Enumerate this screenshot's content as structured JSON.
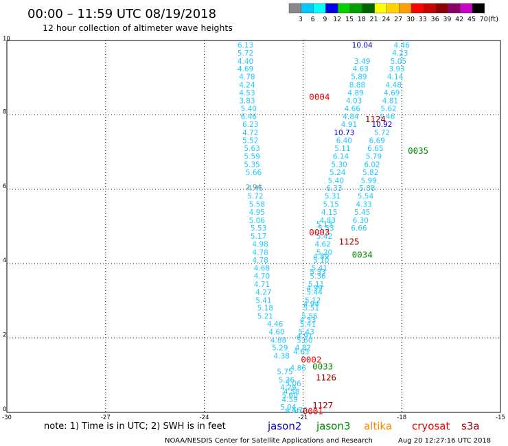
{
  "header": {
    "title": "00:00 – 11:59 UTC 08/19/2018",
    "subtitle": "12 hour collection of altimeter wave heights"
  },
  "legend": {
    "swatches": [
      {
        "color": "#888888",
        "label": "3"
      },
      {
        "color": "#00c8ff",
        "label": "6"
      },
      {
        "color": "#00ffff",
        "label": "9"
      },
      {
        "color": "#0000e6",
        "label": "12"
      },
      {
        "color": "#00d200",
        "label": "15"
      },
      {
        "color": "#00a000",
        "label": "18"
      },
      {
        "color": "#006400",
        "label": "21"
      },
      {
        "color": "#ffff00",
        "label": "24"
      },
      {
        "color": "#ffd200",
        "label": "27"
      },
      {
        "color": "#ffa000",
        "label": "30"
      },
      {
        "color": "#ff0000",
        "label": "33"
      },
      {
        "color": "#c80000",
        "label": "36"
      },
      {
        "color": "#8c0000",
        "label": "39"
      },
      {
        "color": "#8c0064",
        "label": "42"
      },
      {
        "color": "#c800c8",
        "label": "45"
      },
      {
        "color": "#000000",
        "label": "70"
      }
    ],
    "unit": "(ft)"
  },
  "footer": {
    "note": "note:  1) Time is in UTC;  2) SWH is in feet",
    "credit": "NOAA/NESDIS Center for Satellite Applications and Research",
    "timestamp": "Aug 20 12:27:16 UTC 2018",
    "missions": [
      {
        "name": "jason2",
        "color": "#0000cc"
      },
      {
        "name": "jason3",
        "color": "#008800"
      },
      {
        "name": "altika",
        "color": "#ff8800"
      },
      {
        "name": "cryosat",
        "color": "#ee0000"
      },
      {
        "name": "s3a",
        "color": "#990000"
      }
    ]
  },
  "chart_data": {
    "type": "scatter",
    "xlim": [
      -30,
      -15
    ],
    "ylim": [
      0,
      10
    ],
    "x_ticks": [
      "-30",
      "-27",
      "-24",
      "-21",
      "-18",
      "-15"
    ],
    "y_ticks": [
      "0",
      "2",
      "4",
      "6",
      "8",
      "10"
    ],
    "grid": true,
    "track_labels": [
      {
        "x": -20.5,
        "y": 8.5,
        "text": "0004",
        "color": "#ee0000"
      },
      {
        "x": -20.5,
        "y": 4.85,
        "text": "0003",
        "color": "#ee0000"
      },
      {
        "x": -20.75,
        "y": 1.43,
        "text": "0002",
        "color": "#ee0000"
      },
      {
        "x": -20.7,
        "y": 0.05,
        "text": "0001",
        "color": "#ee0000"
      },
      {
        "x": -18.8,
        "y": 7.9,
        "text": "1124",
        "color": "#990000"
      },
      {
        "x": -19.6,
        "y": 4.6,
        "text": "1125",
        "color": "#990000"
      },
      {
        "x": -20.3,
        "y": 0.95,
        "text": "1126",
        "color": "#990000"
      },
      {
        "x": -20.4,
        "y": 0.2,
        "text": "1127",
        "color": "#990000"
      },
      {
        "x": -17.5,
        "y": 7.05,
        "text": "0035",
        "color": "#008800"
      },
      {
        "x": -19.2,
        "y": 4.25,
        "text": "0034",
        "color": "#008800"
      },
      {
        "x": -20.4,
        "y": 1.25,
        "text": "0033",
        "color": "#008800"
      }
    ],
    "series": [
      {
        "color": "#1ec8ff",
        "points": [
          {
            "x": -22.75,
            "y": 9.88,
            "v": "6.13"
          },
          {
            "x": -22.75,
            "y": 9.67,
            "v": "5.72"
          },
          {
            "x": -22.75,
            "y": 9.45,
            "v": "4.40"
          },
          {
            "x": -22.75,
            "y": 9.24,
            "v": "4.69"
          },
          {
            "x": -22.7,
            "y": 9.03,
            "v": "4.78"
          },
          {
            "x": -22.7,
            "y": 8.81,
            "v": "4.24"
          },
          {
            "x": -22.7,
            "y": 8.6,
            "v": "4.53"
          },
          {
            "x": -22.7,
            "y": 8.39,
            "v": "3.83"
          },
          {
            "x": -22.65,
            "y": 8.17,
            "v": "5.40"
          },
          {
            "x": -22.65,
            "y": 7.96,
            "v": "6.46"
          },
          {
            "x": -22.6,
            "y": 7.75,
            "v": "6.23"
          },
          {
            "x": -22.6,
            "y": 7.53,
            "v": "4.72"
          },
          {
            "x": -22.6,
            "y": 7.32,
            "v": "5.52"
          },
          {
            "x": -22.55,
            "y": 7.1,
            "v": "5.63"
          },
          {
            "x": -22.55,
            "y": 6.89,
            "v": "5.59"
          },
          {
            "x": -22.55,
            "y": 6.67,
            "v": "5.35"
          },
          {
            "x": -22.5,
            "y": 6.46,
            "v": "5.66"
          },
          {
            "x": -22.45,
            "y": 6.03,
            "v": "4.45"
          },
          {
            "x": -22.45,
            "y": 5.82,
            "v": "5.72"
          },
          {
            "x": -22.4,
            "y": 5.6,
            "v": "5.58"
          },
          {
            "x": -22.4,
            "y": 5.39,
            "v": "4.95"
          },
          {
            "x": -22.4,
            "y": 5.17,
            "v": "5.06"
          },
          {
            "x": -22.35,
            "y": 4.96,
            "v": "5.53"
          },
          {
            "x": -22.35,
            "y": 4.74,
            "v": "5.17"
          },
          {
            "x": -22.3,
            "y": 4.53,
            "v": "4.98"
          },
          {
            "x": -22.3,
            "y": 4.31,
            "v": "4.78"
          },
          {
            "x": -22.3,
            "y": 4.1,
            "v": "4.78"
          },
          {
            "x": -22.25,
            "y": 3.88,
            "v": "4.68"
          },
          {
            "x": -22.25,
            "y": 3.67,
            "v": "4.70"
          },
          {
            "x": -22.25,
            "y": 3.45,
            "v": "4.71"
          },
          {
            "x": -22.2,
            "y": 3.24,
            "v": "4.27"
          },
          {
            "x": -22.2,
            "y": 3.02,
            "v": "5.41"
          },
          {
            "x": -22.15,
            "y": 2.81,
            "v": "5.18"
          },
          {
            "x": -22.15,
            "y": 2.59,
            "v": "5.21"
          },
          {
            "x": -21.85,
            "y": 2.38,
            "v": "4.46"
          },
          {
            "x": -21.8,
            "y": 2.17,
            "v": "4.60"
          },
          {
            "x": -21.75,
            "y": 1.95,
            "v": "4.88"
          },
          {
            "x": -21.7,
            "y": 1.74,
            "v": "5.29"
          },
          {
            "x": -21.65,
            "y": 1.52,
            "v": "4.38"
          },
          {
            "x": -21.55,
            "y": 1.1,
            "v": "5.75"
          },
          {
            "x": -21.5,
            "y": 0.88,
            "v": "5.36"
          },
          {
            "x": -21.45,
            "y": 0.67,
            "v": "4.29"
          },
          {
            "x": -21.4,
            "y": 0.46,
            "v": "5.60"
          }
        ]
      },
      {
        "color": "#1ec8ff",
        "points": [
          {
            "x": -18.0,
            "y": 9.88,
            "v": "4.46"
          },
          {
            "x": -18.05,
            "y": 9.67,
            "v": "4.23"
          },
          {
            "x": -18.1,
            "y": 9.45,
            "v": "5.05"
          },
          {
            "x": -18.15,
            "y": 9.24,
            "v": "3.93"
          },
          {
            "x": -18.2,
            "y": 9.03,
            "v": "4.14"
          },
          {
            "x": -18.25,
            "y": 8.81,
            "v": "4.48"
          },
          {
            "x": -18.3,
            "y": 8.6,
            "v": "4.69"
          },
          {
            "x": -18.35,
            "y": 8.39,
            "v": "4.81"
          },
          {
            "x": -18.4,
            "y": 8.17,
            "v": "5.62"
          },
          {
            "x": -18.45,
            "y": 7.96,
            "v": "4.46"
          },
          {
            "x": -18.6,
            "y": 7.53,
            "v": "5.72"
          },
          {
            "x": -18.75,
            "y": 7.32,
            "v": "6.69"
          },
          {
            "x": -18.8,
            "y": 7.1,
            "v": "6.65"
          },
          {
            "x": -18.85,
            "y": 6.89,
            "v": "5.79"
          },
          {
            "x": -18.9,
            "y": 6.67,
            "v": "6.02"
          },
          {
            "x": -18.95,
            "y": 6.46,
            "v": "5.82"
          },
          {
            "x": -19.0,
            "y": 6.24,
            "v": "5.99"
          },
          {
            "x": -19.05,
            "y": 6.03,
            "v": "5.88"
          },
          {
            "x": -19.1,
            "y": 5.82,
            "v": "5.54"
          },
          {
            "x": -19.15,
            "y": 5.6,
            "v": "4.33"
          },
          {
            "x": -19.2,
            "y": 5.39,
            "v": "5.45"
          },
          {
            "x": -19.25,
            "y": 5.17,
            "v": "6.30"
          },
          {
            "x": -19.3,
            "y": 4.96,
            "v": "6.66"
          }
        ]
      },
      {
        "color": "#1ec8ff",
        "points": [
          {
            "x": -19.2,
            "y": 9.45,
            "v": "3.49"
          },
          {
            "x": -19.25,
            "y": 9.24,
            "v": "4.63"
          },
          {
            "x": -19.3,
            "y": 9.03,
            "v": "5.89"
          },
          {
            "x": -19.35,
            "y": 8.81,
            "v": "8.88"
          },
          {
            "x": -19.4,
            "y": 8.6,
            "v": "4.89"
          },
          {
            "x": -19.45,
            "y": 8.39,
            "v": "4.03"
          },
          {
            "x": -19.5,
            "y": 8.17,
            "v": "4.66"
          },
          {
            "x": -19.55,
            "y": 7.96,
            "v": "4.84"
          },
          {
            "x": -19.6,
            "y": 7.75,
            "v": "4.91"
          },
          {
            "x": -19.75,
            "y": 7.32,
            "v": "6.40"
          },
          {
            "x": -19.8,
            "y": 7.1,
            "v": "5.11"
          },
          {
            "x": -19.85,
            "y": 6.89,
            "v": "6.14"
          },
          {
            "x": -19.9,
            "y": 6.67,
            "v": "5.30"
          },
          {
            "x": -19.95,
            "y": 6.46,
            "v": "5.24"
          },
          {
            "x": -20.0,
            "y": 6.24,
            "v": "5.40"
          },
          {
            "x": -20.05,
            "y": 6.03,
            "v": "6.33"
          },
          {
            "x": -20.1,
            "y": 5.82,
            "v": "5.31"
          },
          {
            "x": -20.15,
            "y": 5.6,
            "v": "5.15"
          },
          {
            "x": -20.2,
            "y": 5.39,
            "v": "4.15"
          },
          {
            "x": -20.25,
            "y": 5.17,
            "v": "4.83"
          },
          {
            "x": -20.3,
            "y": 4.96,
            "v": "5.53"
          },
          {
            "x": -20.35,
            "y": 4.74,
            "v": "5.42"
          },
          {
            "x": -20.4,
            "y": 4.53,
            "v": "4.62"
          },
          {
            "x": -20.35,
            "y": 4.31,
            "v": "5.20"
          },
          {
            "x": -20.45,
            "y": 4.1,
            "v": "5.10"
          },
          {
            "x": -20.5,
            "y": 3.88,
            "v": "5.41"
          },
          {
            "x": -20.55,
            "y": 3.67,
            "v": "5.36"
          },
          {
            "x": -20.6,
            "y": 3.45,
            "v": "5.11"
          },
          {
            "x": -20.65,
            "y": 3.24,
            "v": "5.44"
          },
          {
            "x": -20.7,
            "y": 3.02,
            "v": "5.12"
          },
          {
            "x": -20.75,
            "y": 2.81,
            "v": "5.51"
          },
          {
            "x": -20.8,
            "y": 2.59,
            "v": "5.56"
          },
          {
            "x": -20.85,
            "y": 2.38,
            "v": "5.41"
          },
          {
            "x": -20.9,
            "y": 2.17,
            "v": "5.43"
          },
          {
            "x": -20.95,
            "y": 1.95,
            "v": "5.60"
          },
          {
            "x": -21.0,
            "y": 1.74,
            "v": "4.82"
          }
        ]
      },
      {
        "color": "#1ec8ff",
        "points": [
          {
            "x": -20.35,
            "y": 5.06,
            "v": "5.13"
          },
          {
            "x": -20.45,
            "y": 4.2,
            "v": "4.89"
          },
          {
            "x": -20.55,
            "y": 3.78,
            "v": "5.33"
          },
          {
            "x": -20.65,
            "y": 3.35,
            "v": "4.99"
          },
          {
            "x": -20.75,
            "y": 2.92,
            "v": "4.94"
          },
          {
            "x": -20.85,
            "y": 2.49,
            "v": "4.53"
          },
          {
            "x": -20.95,
            "y": 2.06,
            "v": "4.91"
          },
          {
            "x": -21.05,
            "y": 1.63,
            "v": "4.65"
          },
          {
            "x": -21.15,
            "y": 1.2,
            "v": "4.86"
          },
          {
            "x": -21.3,
            "y": 0.78,
            "v": "5.06"
          },
          {
            "x": -21.35,
            "y": 0.56,
            "v": "4.58"
          },
          {
            "x": -21.4,
            "y": 0.35,
            "v": "4.59"
          },
          {
            "x": -21.45,
            "y": 0.15,
            "v": "5.04"
          },
          {
            "x": -21.3,
            "y": 0.06,
            "v": "4.56"
          },
          {
            "x": -21.1,
            "y": 0.06,
            "v": "4.70"
          }
        ]
      },
      {
        "color": "#0000cc",
        "points": [
          {
            "x": -19.2,
            "y": 9.88,
            "v": "10.04"
          },
          {
            "x": -19.75,
            "y": 7.53,
            "v": "10.73"
          },
          {
            "x": -18.6,
            "y": 7.75,
            "v": "10.92"
          }
        ]
      },
      {
        "color": "#888888",
        "points": [
          {
            "x": -22.5,
            "y": 6.06,
            "v": "2.94"
          }
        ]
      }
    ]
  }
}
